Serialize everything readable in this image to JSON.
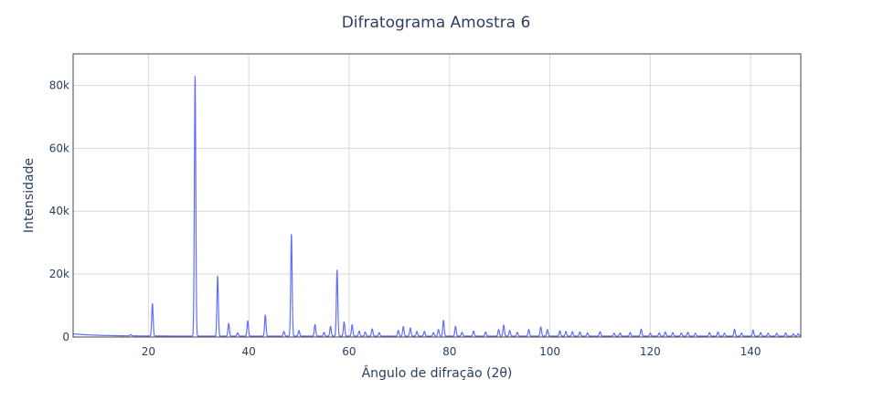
{
  "chart_data": {
    "type": "line",
    "title": "Difratograma Amostra 6",
    "xlabel": "Ângulo de difração (2θ)",
    "ylabel": "Intensidade",
    "xlim": [
      5,
      150
    ],
    "ylim": [
      0,
      90000
    ],
    "x_ticks": [
      20,
      40,
      60,
      80,
      100,
      120,
      140
    ],
    "x_tick_labels": [
      "20",
      "40",
      "60",
      "80",
      "100",
      "120",
      "140"
    ],
    "y_ticks": [
      0,
      20000,
      40000,
      60000,
      80000
    ],
    "y_tick_labels": [
      "0",
      "20k",
      "40k",
      "60k",
      "80k"
    ],
    "grid": true,
    "legend": "none",
    "line_color": "#636efa",
    "series": [
      {
        "baseline": 700,
        "peaks": [
          [
            16.5,
            400
          ],
          [
            20.8,
            10300
          ],
          [
            29.3,
            82500
          ],
          [
            33.8,
            19000
          ],
          [
            36.0,
            4000
          ],
          [
            37.8,
            1000
          ],
          [
            39.8,
            4800
          ],
          [
            43.3,
            6700
          ],
          [
            47.0,
            1500
          ],
          [
            48.5,
            32300
          ],
          [
            50.0,
            1800
          ],
          [
            53.2,
            3700
          ],
          [
            55.0,
            1200
          ],
          [
            56.3,
            3100
          ],
          [
            57.6,
            21000
          ],
          [
            59.0,
            4500
          ],
          [
            60.6,
            3600
          ],
          [
            62.0,
            1600
          ],
          [
            63.2,
            1300
          ],
          [
            64.6,
            2300
          ],
          [
            66.0,
            1100
          ],
          [
            69.8,
            1800
          ],
          [
            70.8,
            3000
          ],
          [
            72.2,
            2600
          ],
          [
            73.5,
            1500
          ],
          [
            75.0,
            1500
          ],
          [
            76.8,
            1100
          ],
          [
            77.8,
            2100
          ],
          [
            78.8,
            5000
          ],
          [
            81.2,
            3100
          ],
          [
            82.5,
            1200
          ],
          [
            84.8,
            1600
          ],
          [
            87.2,
            1300
          ],
          [
            89.8,
            2100
          ],
          [
            90.8,
            3500
          ],
          [
            92.0,
            1800
          ],
          [
            93.5,
            1200
          ],
          [
            95.8,
            2100
          ],
          [
            98.2,
            2900
          ],
          [
            99.5,
            2100
          ],
          [
            102.0,
            1700
          ],
          [
            103.2,
            1500
          ],
          [
            104.5,
            1400
          ],
          [
            106.0,
            1300
          ],
          [
            107.5,
            1000
          ],
          [
            110.0,
            1400
          ],
          [
            112.8,
            900
          ],
          [
            114.0,
            1000
          ],
          [
            116.0,
            1100
          ],
          [
            118.2,
            2200
          ],
          [
            120.0,
            900
          ],
          [
            121.8,
            1000
          ],
          [
            123.0,
            1300
          ],
          [
            124.5,
            1100
          ],
          [
            126.2,
            1000
          ],
          [
            127.5,
            1200
          ],
          [
            129.0,
            900
          ],
          [
            131.8,
            1100
          ],
          [
            133.5,
            1300
          ],
          [
            134.8,
            900
          ],
          [
            136.8,
            2200
          ],
          [
            138.2,
            1000
          ],
          [
            140.5,
            1900
          ],
          [
            142.0,
            1100
          ],
          [
            143.5,
            900
          ],
          [
            145.2,
            900
          ],
          [
            147.0,
            1000
          ],
          [
            148.5,
            700
          ],
          [
            149.5,
            800
          ]
        ]
      }
    ]
  }
}
